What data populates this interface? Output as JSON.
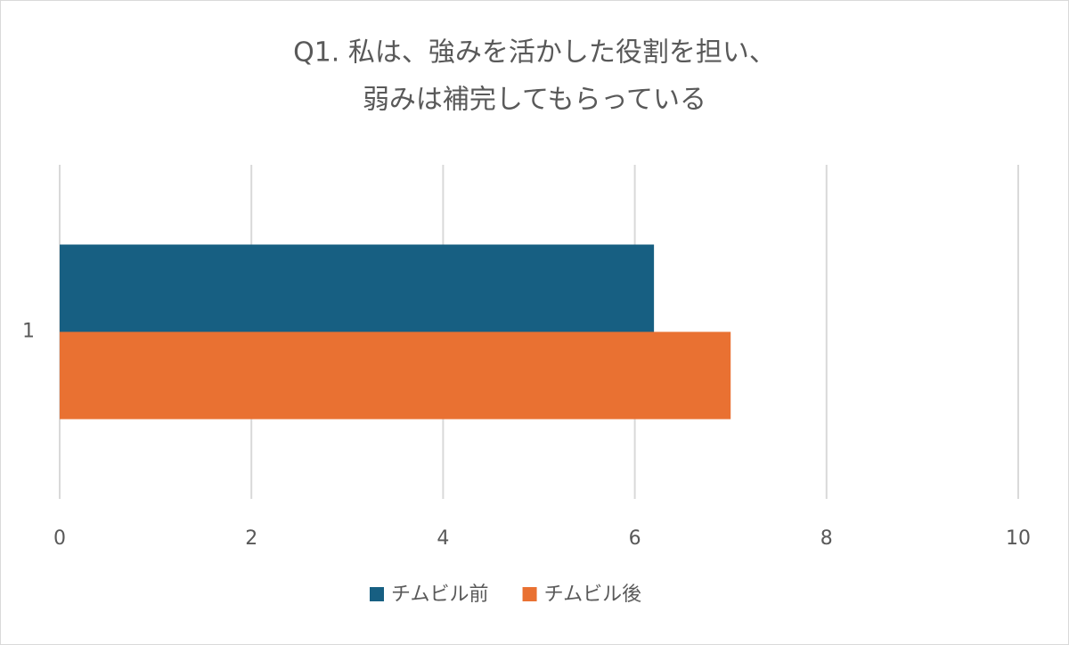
{
  "chart_data": {
    "type": "hbar",
    "title": [
      "Q1. 私は、強みを活かした役割を担い、",
      "弱みは補完してもらっている"
    ],
    "categories": [
      "1"
    ],
    "series": [
      {
        "name": "チムビル前",
        "color": "#175f82",
        "values": [
          6.2
        ]
      },
      {
        "name": "チムビル後",
        "color": "#e97132",
        "values": [
          7
        ]
      }
    ],
    "xlim": [
      0,
      10
    ],
    "xticks": [
      0,
      2,
      4,
      6,
      8,
      10
    ],
    "grid": true,
    "legend": "bottom"
  }
}
